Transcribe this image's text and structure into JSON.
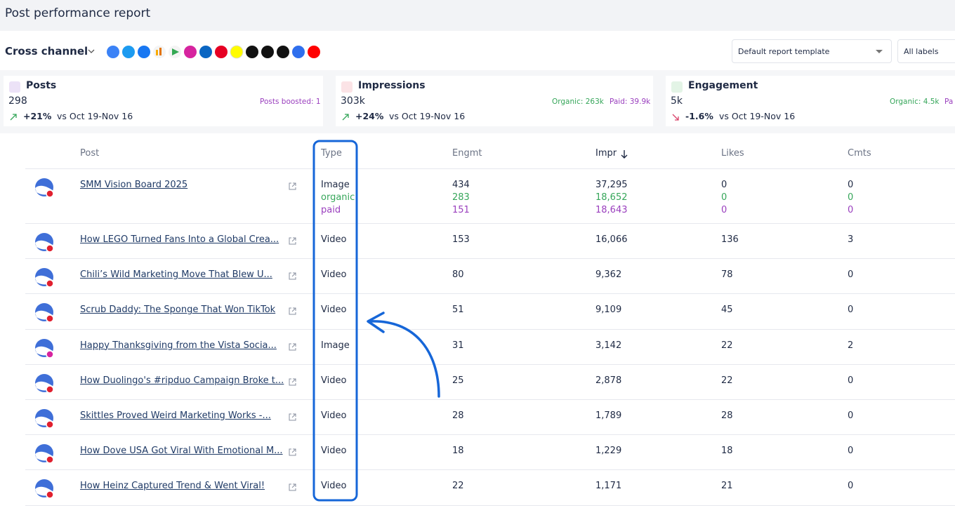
{
  "header": {
    "title": "Post performance report"
  },
  "toolbar": {
    "channel": "Cross channel",
    "template": "Default report template",
    "labels": "All labels"
  },
  "summary": [
    {
      "title": "Posts",
      "value": "298",
      "change": "+21%",
      "compare": "vs Oct 19-Nov 16",
      "extra": [
        "Posts boosted: 1"
      ]
    },
    {
      "title": "Impressions",
      "value": "303k",
      "change": "+24%",
      "compare": "vs Oct 19-Nov 16",
      "extra": [
        "Organic: 263k",
        "Paid: 39.9k"
      ]
    },
    {
      "title": "Engagement",
      "value": "5k",
      "change": "-1.6%",
      "compare": "vs Oct 19-Nov 16",
      "extra": [
        "Organic: 4.5k",
        "Pa"
      ]
    }
  ],
  "table": {
    "columns": [
      "Post",
      "Type",
      "Engmt",
      "Impr",
      "Likes",
      "Cmts"
    ],
    "rows": [
      {
        "post": "SMM Vision Board 2025",
        "type": "Image",
        "engmt": "434",
        "impr": "37,295",
        "likes": "0",
        "cmts": "0",
        "breakdown": [
          {
            "type": "organic",
            "engmt": "283",
            "impr": "18,652",
            "likes": "0",
            "cmts": "0"
          },
          {
            "type": "paid",
            "engmt": "151",
            "impr": "18,643",
            "likes": "0",
            "cmts": "0"
          }
        ]
      },
      {
        "post": "How LEGO Turned Fans Into a Global Crea...",
        "type": "Video",
        "engmt": "153",
        "impr": "16,066",
        "likes": "136",
        "cmts": "3"
      },
      {
        "post": "Chili’s Wild Marketing Move That Blew U...",
        "type": "Video",
        "engmt": "80",
        "impr": "9,362",
        "likes": "78",
        "cmts": "0"
      },
      {
        "post": "Scrub Daddy: The Sponge That Won TikTok",
        "type": "Video",
        "engmt": "51",
        "impr": "9,109",
        "likes": "45",
        "cmts": "0"
      },
      {
        "post": "Happy Thanksgiving from the Vista Socia...",
        "type": "Image",
        "engmt": "31",
        "impr": "3,142",
        "likes": "22",
        "cmts": "2"
      },
      {
        "post": "How Duolingo's #ripduo Campaign Broke t...",
        "type": "Video",
        "engmt": "25",
        "impr": "2,878",
        "likes": "22",
        "cmts": "0"
      },
      {
        "post": "Skittles Proved Weird Marketing Works -...",
        "type": "Video",
        "engmt": "28",
        "impr": "1,789",
        "likes": "28",
        "cmts": "0"
      },
      {
        "post": "How Dove USA Got Viral With Emotional M...",
        "type": "Video",
        "engmt": "18",
        "impr": "1,229",
        "likes": "18",
        "cmts": "0"
      },
      {
        "post": "How Heinz Captured Trend & Went Viral!",
        "type": "Video",
        "engmt": "22",
        "impr": "1,171",
        "likes": "21",
        "cmts": "0"
      }
    ]
  }
}
